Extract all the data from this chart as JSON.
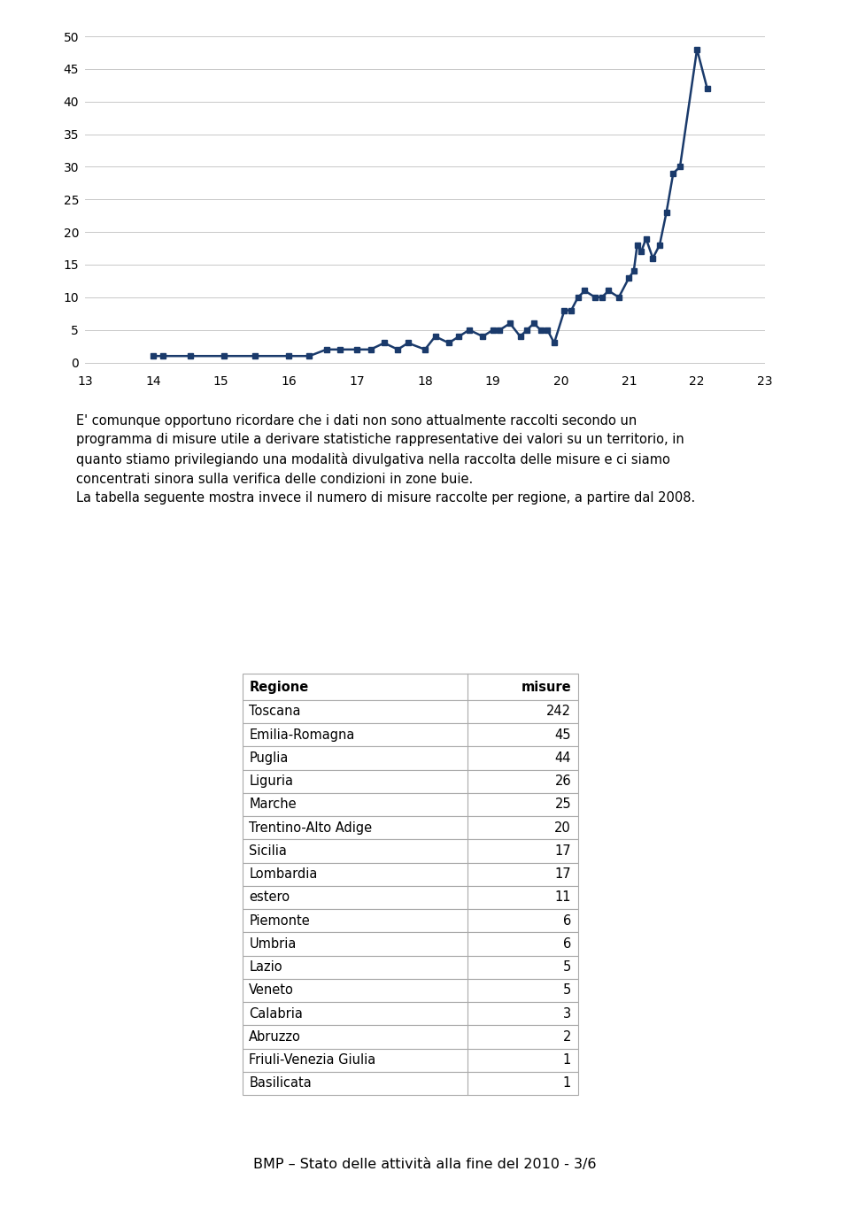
{
  "chart_color": "#1a3a6b",
  "x_ticks": [
    13,
    14,
    15,
    16,
    17,
    18,
    19,
    20,
    21,
    22,
    23
  ],
  "y_ticks": [
    0,
    5,
    10,
    15,
    20,
    25,
    30,
    35,
    40,
    45,
    50
  ],
  "ylim": [
    -1,
    50
  ],
  "xlim": [
    13,
    23
  ],
  "paragraph_text": "E' comunque opportuno ricordare che i dati non sono attualmente raccolti secondo un\nprogramma di misure utile a derivare statistiche rappresentative dei valori su un territorio, in\nquanto stiamo privilegiando una modalità divulgativa nella raccolta delle misure e ci siamo\nconcentrati sinora sulla verifica delle condizioni in zone buie.\nLa tabella seguente mostra invece il numero di misure raccolte per regione, a partire dal 2008.",
  "table_headers": [
    "Regione",
    "misure"
  ],
  "table_rows": [
    [
      "Toscana",
      "242"
    ],
    [
      "Emilia-Romagna",
      "45"
    ],
    [
      "Puglia",
      "44"
    ],
    [
      "Liguria",
      "26"
    ],
    [
      "Marche",
      "25"
    ],
    [
      "Trentino-Alto Adige",
      "20"
    ],
    [
      "Sicilia",
      "17"
    ],
    [
      "Lombardia",
      "17"
    ],
    [
      "estero",
      "11"
    ],
    [
      "Piemonte",
      "6"
    ],
    [
      "Umbria",
      "6"
    ],
    [
      "Lazio",
      "5"
    ],
    [
      "Veneto",
      "5"
    ],
    [
      "Calabria",
      "3"
    ],
    [
      "Abruzzo",
      "2"
    ],
    [
      "Friuli-Venezia Giulia",
      "1"
    ],
    [
      "Basilicata",
      "1"
    ]
  ],
  "footer_text": "BMP – Stato delle attività alla fine del 2010 - 3/6",
  "bg_color": "#ffffff",
  "line_width": 1.8,
  "marker_size": 5,
  "chart_x": [
    14.0,
    14.15,
    14.55,
    15.05,
    15.5,
    16.0,
    16.3,
    16.55,
    16.75,
    17.0,
    17.2,
    17.4,
    17.6,
    17.75,
    18.0,
    18.15,
    18.35,
    18.5,
    18.65,
    18.85,
    19.0,
    19.1,
    19.25,
    19.4,
    19.5,
    19.6,
    19.7,
    19.8,
    19.9,
    20.05,
    20.15,
    20.25,
    20.35,
    20.5,
    20.6,
    20.7,
    20.85,
    21.0,
    21.07,
    21.12,
    21.18,
    21.25,
    21.35,
    21.45,
    21.55,
    21.65,
    21.75,
    22.0,
    22.15
  ],
  "chart_y": [
    1,
    1,
    1,
    1,
    1,
    1,
    1,
    2,
    2,
    2,
    2,
    3,
    2,
    3,
    2,
    4,
    3,
    4,
    5,
    4,
    5,
    5,
    6,
    4,
    5,
    6,
    5,
    5,
    3,
    8,
    8,
    10,
    11,
    10,
    10,
    11,
    10,
    13,
    14,
    18,
    17,
    19,
    16,
    18,
    23,
    29,
    30,
    48,
    42
  ]
}
